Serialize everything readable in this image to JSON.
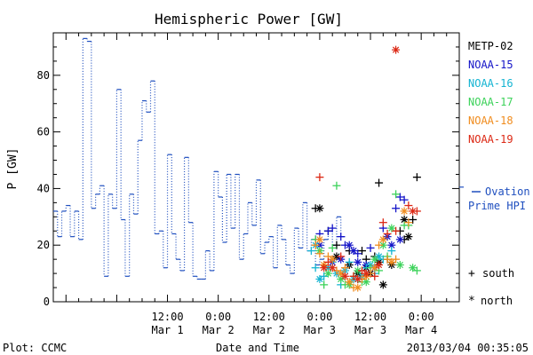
{
  "chart_data": {
    "type": "line",
    "title": "Hemispheric Power [GW]",
    "xlabel": "Date and Time",
    "ylabel": "P [GW]",
    "x_range_hours": [
      -15,
      81
    ],
    "ylim": [
      0,
      95
    ],
    "grid": false,
    "y_ticks": [
      0,
      20,
      40,
      60,
      80
    ],
    "x_ticks": [
      {
        "hour": 12,
        "line1": "12:00",
        "line2": "Mar 1"
      },
      {
        "hour": 24,
        "line1": "0:00",
        "line2": "Mar 2"
      },
      {
        "hour": 36,
        "line1": "12:00",
        "line2": "Mar 2"
      },
      {
        "hour": 48,
        "line1": "0:00",
        "line2": "Mar 3"
      },
      {
        "hour": 60,
        "line1": "12:00",
        "line2": "Mar 3"
      },
      {
        "hour": 72,
        "line1": "0:00",
        "line2": "Mar 4"
      }
    ],
    "ovation": {
      "label_line1": "Ovation",
      "label_line2": "Prime HPI",
      "current_value": 40.5,
      "color": "#1f4fbf",
      "steps": [
        [
          -15,
          32
        ],
        [
          -14,
          23
        ],
        [
          -13,
          32
        ],
        [
          -12,
          34
        ],
        [
          -11,
          23
        ],
        [
          -10,
          32
        ],
        [
          -9,
          22
        ],
        [
          -8,
          93
        ],
        [
          -7,
          92
        ],
        [
          -6,
          33
        ],
        [
          -5,
          38
        ],
        [
          -4,
          41
        ],
        [
          -3,
          9
        ],
        [
          -2,
          38
        ],
        [
          -1,
          33
        ],
        [
          0,
          75
        ],
        [
          1,
          29
        ],
        [
          2,
          9
        ],
        [
          3,
          38
        ],
        [
          4,
          31
        ],
        [
          5,
          57
        ],
        [
          6,
          71
        ],
        [
          7,
          67
        ],
        [
          8,
          78
        ],
        [
          9,
          24
        ],
        [
          10,
          25
        ],
        [
          11,
          12
        ],
        [
          12,
          52
        ],
        [
          13,
          24
        ],
        [
          14,
          15
        ],
        [
          15,
          11
        ],
        [
          16,
          51
        ],
        [
          17,
          28
        ],
        [
          18,
          9
        ],
        [
          19,
          8
        ],
        [
          20,
          8
        ],
        [
          21,
          18
        ],
        [
          22,
          11
        ],
        [
          23,
          46
        ],
        [
          24,
          37
        ],
        [
          25,
          21
        ],
        [
          26,
          45
        ],
        [
          27,
          26
        ],
        [
          28,
          45
        ],
        [
          29,
          15
        ],
        [
          30,
          24
        ],
        [
          31,
          35
        ],
        [
          32,
          27
        ],
        [
          33,
          43
        ],
        [
          34,
          17
        ],
        [
          35,
          21
        ],
        [
          36,
          23
        ],
        [
          37,
          12
        ],
        [
          38,
          27
        ],
        [
          39,
          22
        ],
        [
          40,
          13
        ],
        [
          41,
          10
        ],
        [
          42,
          26
        ],
        [
          43,
          19
        ],
        [
          44,
          35
        ],
        [
          45,
          18
        ],
        [
          46,
          22
        ],
        [
          47,
          13
        ],
        [
          48,
          15
        ],
        [
          49,
          22
        ],
        [
          50,
          25
        ],
        [
          51,
          20
        ],
        [
          52,
          30
        ],
        [
          53,
          23
        ]
      ]
    },
    "series": [
      {
        "name": "METP-02",
        "color": "#000000",
        "south": [
          [
            47,
            33
          ],
          [
            50,
            25
          ],
          [
            52,
            20
          ],
          [
            55,
            18
          ],
          [
            58,
            18
          ],
          [
            59,
            15
          ],
          [
            61,
            16
          ],
          [
            62,
            42
          ],
          [
            64,
            15
          ],
          [
            67,
            25
          ],
          [
            68,
            22
          ],
          [
            70,
            29
          ],
          [
            71,
            44
          ]
        ],
        "north": [
          [
            48,
            33
          ],
          [
            52,
            16
          ],
          [
            55,
            13
          ],
          [
            57,
            10
          ],
          [
            59,
            12
          ],
          [
            60,
            10
          ],
          [
            62,
            14
          ],
          [
            63,
            6
          ],
          [
            65,
            13
          ],
          [
            68,
            29
          ],
          [
            69,
            23
          ]
        ]
      },
      {
        "name": "NOAA-15",
        "color": "#1414c8",
        "south": [
          [
            47,
            22
          ],
          [
            48,
            24
          ],
          [
            50,
            25
          ],
          [
            51,
            26
          ],
          [
            53,
            23
          ],
          [
            54,
            20
          ],
          [
            57,
            17
          ],
          [
            60,
            19
          ],
          [
            63,
            26
          ],
          [
            66,
            33
          ],
          [
            67,
            37
          ],
          [
            68,
            36
          ]
        ],
        "north": [
          [
            48,
            20
          ],
          [
            51,
            14
          ],
          [
            53,
            15
          ],
          [
            55,
            20
          ],
          [
            56,
            18
          ],
          [
            57,
            14
          ],
          [
            59,
            13
          ],
          [
            61,
            12
          ],
          [
            64,
            23
          ],
          [
            65,
            20
          ],
          [
            67,
            22
          ]
        ]
      },
      {
        "name": "NOAA-16",
        "color": "#14b4d2",
        "south": [
          [
            46,
            18
          ],
          [
            47,
            12
          ],
          [
            49,
            9
          ],
          [
            51,
            14
          ],
          [
            53,
            6
          ],
          [
            55,
            14
          ],
          [
            57,
            8
          ],
          [
            59,
            12
          ],
          [
            61,
            10
          ],
          [
            63,
            15
          ],
          [
            65,
            18
          ]
        ],
        "north": [
          [
            47,
            20
          ],
          [
            48,
            8
          ],
          [
            50,
            12
          ],
          [
            52,
            10
          ],
          [
            54,
            11
          ],
          [
            56,
            8
          ],
          [
            58,
            9
          ],
          [
            60,
            13
          ],
          [
            62,
            16
          ]
        ]
      },
      {
        "name": "NOAA-17",
        "color": "#3cd25a",
        "south": [
          [
            47,
            22
          ],
          [
            49,
            6
          ],
          [
            51,
            19
          ],
          [
            52,
            41
          ],
          [
            54,
            6
          ],
          [
            56,
            9
          ],
          [
            58,
            7
          ],
          [
            60,
            12
          ],
          [
            62,
            11
          ],
          [
            64,
            16
          ],
          [
            66,
            38
          ],
          [
            68,
            27
          ],
          [
            69,
            27
          ],
          [
            71,
            11
          ]
        ],
        "north": [
          [
            48,
            18
          ],
          [
            50,
            10
          ],
          [
            53,
            8
          ],
          [
            55,
            6
          ],
          [
            57,
            11
          ],
          [
            59,
            7
          ],
          [
            61,
            15
          ],
          [
            63,
            20
          ],
          [
            65,
            26
          ],
          [
            67,
            13
          ],
          [
            70,
            12
          ]
        ]
      },
      {
        "name": "NOAA-18",
        "color": "#f08c1e",
        "south": [
          [
            47,
            20
          ],
          [
            48,
            17
          ],
          [
            50,
            16
          ],
          [
            52,
            11
          ],
          [
            54,
            12
          ],
          [
            56,
            5
          ],
          [
            58,
            8
          ],
          [
            60,
            10
          ],
          [
            62,
            20
          ],
          [
            64,
            15
          ],
          [
            66,
            15
          ],
          [
            69,
            28
          ]
        ],
        "north": [
          [
            48,
            22
          ],
          [
            49,
            13
          ],
          [
            51,
            15
          ],
          [
            53,
            10
          ],
          [
            55,
            7
          ],
          [
            57,
            5
          ],
          [
            59,
            9
          ],
          [
            61,
            12
          ],
          [
            63,
            22
          ],
          [
            65,
            14
          ],
          [
            68,
            32
          ]
        ]
      },
      {
        "name": "NOAA-19",
        "color": "#dc2814",
        "south": [
          [
            48,
            44
          ],
          [
            50,
            14
          ],
          [
            53,
            16
          ],
          [
            56,
            9
          ],
          [
            58,
            11
          ],
          [
            61,
            9
          ],
          [
            63,
            28
          ],
          [
            64,
            24
          ],
          [
            66,
            25
          ],
          [
            69,
            34
          ],
          [
            71,
            32
          ]
        ],
        "north": [
          [
            49,
            12
          ],
          [
            51,
            12
          ],
          [
            54,
            9
          ],
          [
            57,
            8
          ],
          [
            59,
            10
          ],
          [
            62,
            13
          ],
          [
            66,
            89
          ],
          [
            70,
            32
          ]
        ]
      }
    ]
  },
  "legend": {
    "south_symbol": "+",
    "south_label": "south",
    "north_symbol": "*",
    "north_label": "north"
  },
  "footer": {
    "plot_credit": "Plot: CCMC",
    "timestamp": "2013/03/04 00:35:05"
  }
}
